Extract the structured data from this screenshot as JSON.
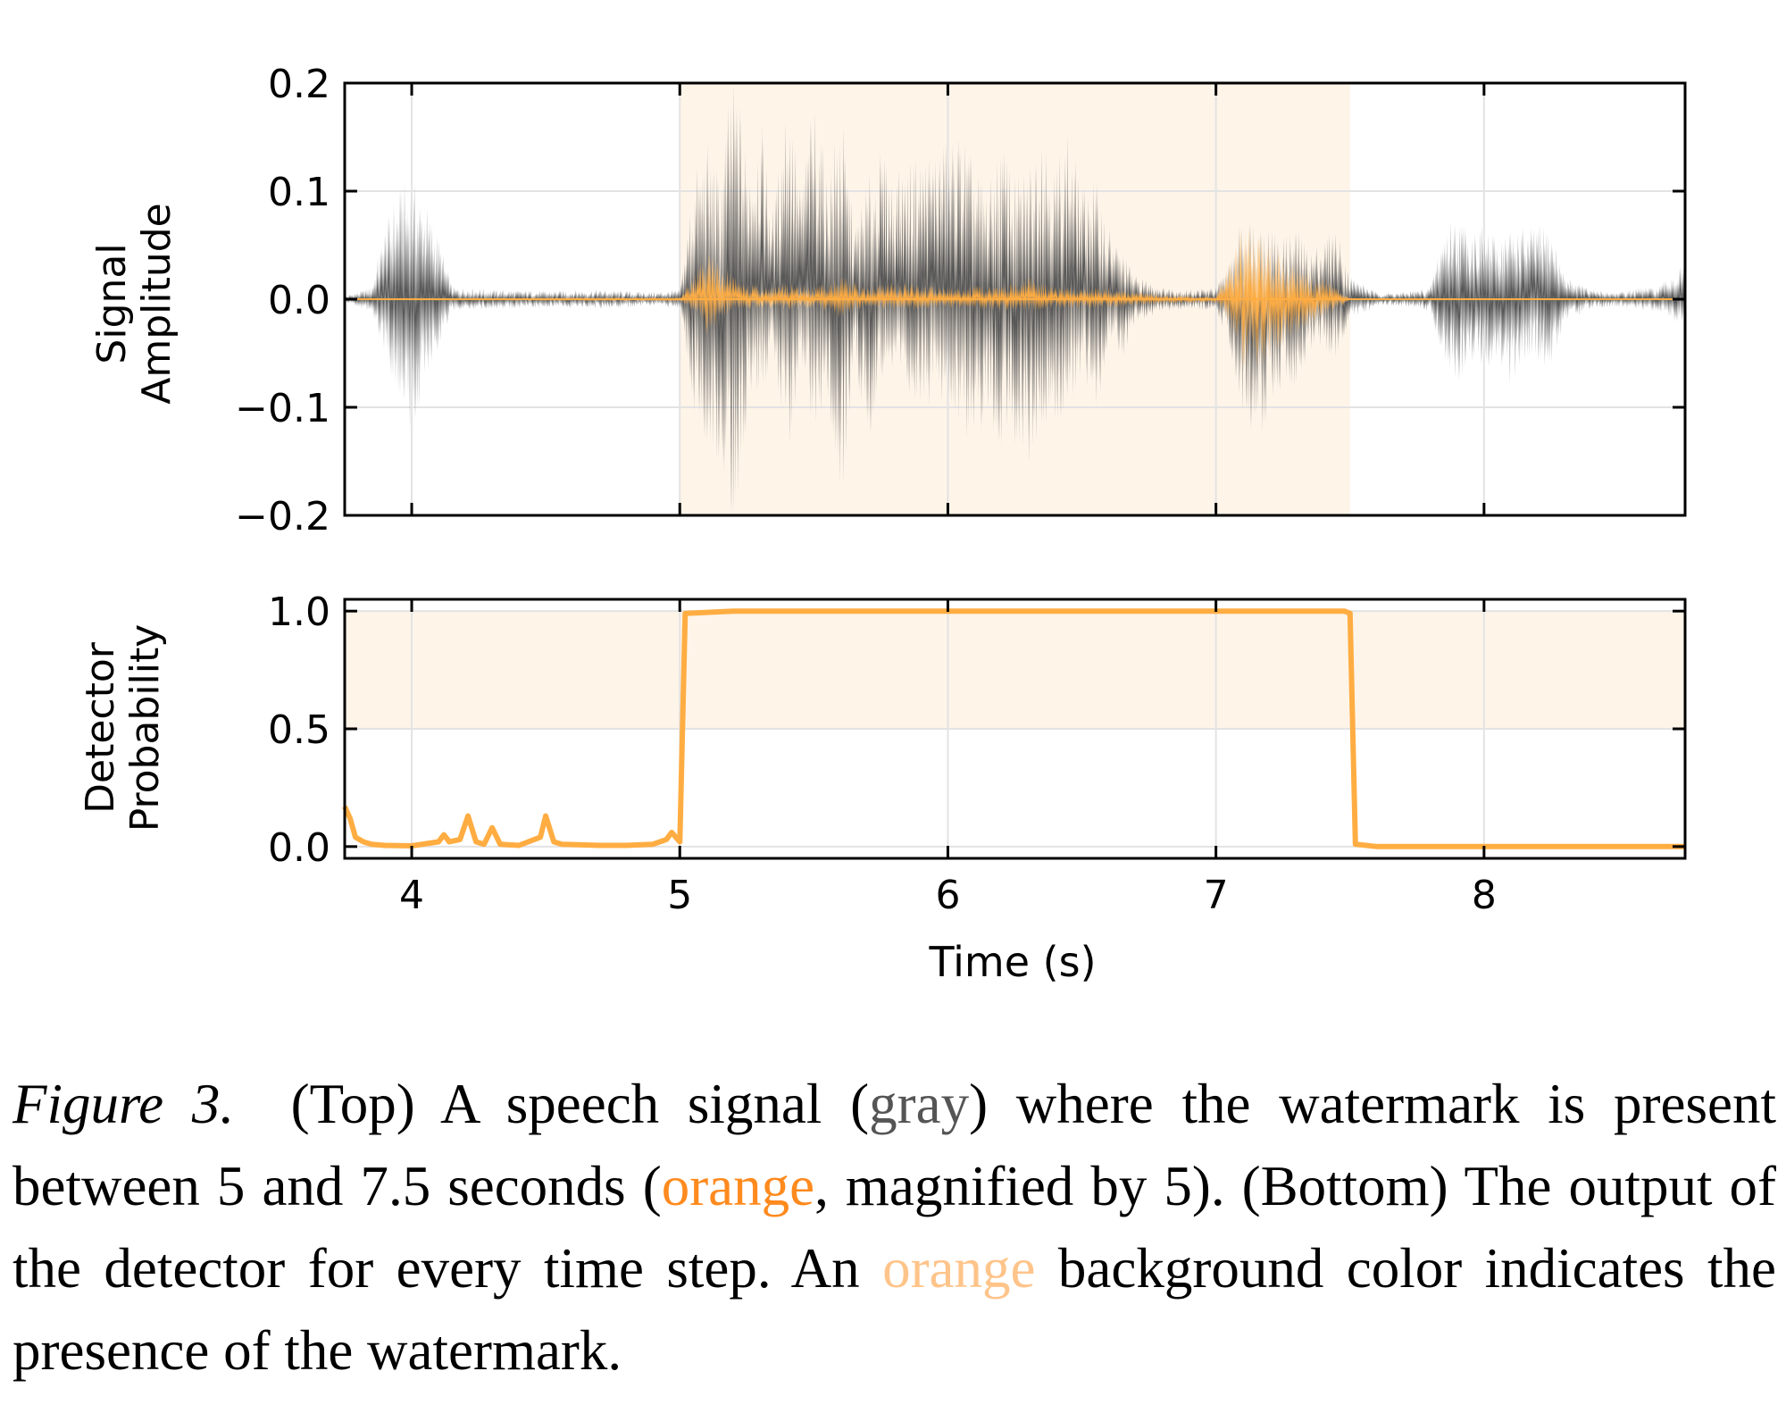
{
  "chart_data": [
    {
      "type": "line",
      "panel": "top",
      "ylabel_line1": "Signal",
      "ylabel_line2": "Amplitude",
      "xlabel": "",
      "xlim": [
        3.75,
        8.75
      ],
      "ylim": [
        -0.2,
        0.2
      ],
      "xticks": [
        4,
        5,
        6,
        7,
        8
      ],
      "xtick_labels": [
        "",
        "",
        "",
        "",
        ""
      ],
      "yticks": [
        0.2,
        0.1,
        0.0,
        -0.1,
        -0.2
      ],
      "ytick_labels": [
        "0.2",
        "0.1",
        "0.0",
        "−0.1",
        "−0.2"
      ],
      "grid": true,
      "shaded_region_x": [
        5.0,
        7.5
      ],
      "series": [
        {
          "color": "#555555",
          "envelope": [
            [
              3.75,
              0.003,
              -0.003
            ],
            [
              3.85,
              0.01,
              -0.01
            ],
            [
              3.9,
              0.06,
              -0.05
            ],
            [
              3.95,
              0.09,
              -0.08
            ],
            [
              4.0,
              0.1,
              -0.12
            ],
            [
              4.05,
              0.08,
              -0.07
            ],
            [
              4.1,
              0.05,
              -0.04
            ],
            [
              4.15,
              0.01,
              -0.01
            ],
            [
              4.3,
              0.008,
              -0.008
            ],
            [
              4.5,
              0.007,
              -0.007
            ],
            [
              4.7,
              0.008,
              -0.008
            ],
            [
              4.9,
              0.006,
              -0.006
            ],
            [
              5.0,
              0.008,
              -0.008
            ],
            [
              5.05,
              0.1,
              -0.09
            ],
            [
              5.1,
              0.13,
              -0.12
            ],
            [
              5.15,
              0.1,
              -0.14
            ],
            [
              5.2,
              0.2,
              -0.2
            ],
            [
              5.25,
              0.12,
              -0.1
            ],
            [
              5.3,
              0.15,
              -0.08
            ],
            [
              5.35,
              0.07,
              -0.05
            ],
            [
              5.4,
              0.18,
              -0.14
            ],
            [
              5.45,
              0.09,
              -0.06
            ],
            [
              5.5,
              0.17,
              -0.11
            ],
            [
              5.55,
              0.1,
              -0.08
            ],
            [
              5.6,
              0.16,
              -0.18
            ],
            [
              5.65,
              0.06,
              -0.05
            ],
            [
              5.7,
              0.1,
              -0.12
            ],
            [
              5.75,
              0.12,
              -0.07
            ],
            [
              5.8,
              0.1,
              -0.06
            ],
            [
              5.9,
              0.12,
              -0.09
            ],
            [
              6.0,
              0.13,
              -0.09
            ],
            [
              6.05,
              0.14,
              -0.11
            ],
            [
              6.1,
              0.11,
              -0.12
            ],
            [
              6.15,
              0.09,
              -0.1
            ],
            [
              6.2,
              0.13,
              -0.13
            ],
            [
              6.25,
              0.1,
              -0.12
            ],
            [
              6.3,
              0.11,
              -0.14
            ],
            [
              6.35,
              0.15,
              -0.12
            ],
            [
              6.4,
              0.11,
              -0.1
            ],
            [
              6.45,
              0.14,
              -0.09
            ],
            [
              6.5,
              0.09,
              -0.06
            ],
            [
              6.55,
              0.1,
              -0.1
            ],
            [
              6.6,
              0.06,
              -0.04
            ],
            [
              6.65,
              0.04,
              -0.05
            ],
            [
              6.7,
              0.02,
              -0.02
            ],
            [
              6.8,
              0.01,
              -0.01
            ],
            [
              6.9,
              0.008,
              -0.008
            ],
            [
              7.0,
              0.01,
              -0.01
            ],
            [
              7.05,
              0.03,
              -0.04
            ],
            [
              7.1,
              0.07,
              -0.09
            ],
            [
              7.15,
              0.07,
              -0.12
            ],
            [
              7.2,
              0.06,
              -0.1
            ],
            [
              7.25,
              0.05,
              -0.07
            ],
            [
              7.3,
              0.06,
              -0.08
            ],
            [
              7.35,
              0.04,
              -0.04
            ],
            [
              7.4,
              0.05,
              -0.04
            ],
            [
              7.45,
              0.06,
              -0.05
            ],
            [
              7.5,
              0.02,
              -0.02
            ],
            [
              7.6,
              0.006,
              -0.006
            ],
            [
              7.7,
              0.006,
              -0.006
            ],
            [
              7.8,
              0.01,
              -0.01
            ],
            [
              7.85,
              0.06,
              -0.05
            ],
            [
              7.9,
              0.07,
              -0.07
            ],
            [
              7.95,
              0.06,
              -0.05
            ],
            [
              8.0,
              0.06,
              -0.06
            ],
            [
              8.05,
              0.05,
              -0.05
            ],
            [
              8.1,
              0.06,
              -0.07
            ],
            [
              8.15,
              0.06,
              -0.05
            ],
            [
              8.2,
              0.06,
              -0.05
            ],
            [
              8.25,
              0.06,
              -0.06
            ],
            [
              8.3,
              0.02,
              -0.02
            ],
            [
              8.4,
              0.008,
              -0.008
            ],
            [
              8.5,
              0.006,
              -0.006
            ],
            [
              8.6,
              0.01,
              -0.01
            ],
            [
              8.65,
              0.01,
              -0.01
            ],
            [
              8.7,
              0.02,
              -0.015
            ],
            [
              8.75,
              0.03,
              -0.03
            ]
          ]
        },
        {
          "color": "#ffad42",
          "envelope": [
            [
              3.75,
              0.001,
              -0.001
            ],
            [
              5.0,
              0.002,
              -0.002
            ],
            [
              5.05,
              0.02,
              -0.01
            ],
            [
              5.1,
              0.04,
              -0.03
            ],
            [
              5.15,
              0.03,
              -0.02
            ],
            [
              5.2,
              0.02,
              -0.01
            ],
            [
              5.3,
              0.01,
              -0.008
            ],
            [
              5.4,
              0.015,
              -0.01
            ],
            [
              5.5,
              0.01,
              -0.008
            ],
            [
              5.6,
              0.02,
              -0.015
            ],
            [
              5.7,
              0.01,
              -0.008
            ],
            [
              5.8,
              0.015,
              -0.01
            ],
            [
              6.0,
              0.01,
              -0.008
            ],
            [
              6.2,
              0.012,
              -0.01
            ],
            [
              6.3,
              0.02,
              -0.01
            ],
            [
              6.4,
              0.01,
              -0.008
            ],
            [
              6.6,
              0.01,
              -0.008
            ],
            [
              6.8,
              0.004,
              -0.004
            ],
            [
              7.0,
              0.003,
              -0.003
            ],
            [
              7.05,
              0.03,
              -0.02
            ],
            [
              7.1,
              0.06,
              -0.06
            ],
            [
              7.15,
              0.06,
              -0.06
            ],
            [
              7.2,
              0.05,
              -0.05
            ],
            [
              7.25,
              0.04,
              -0.04
            ],
            [
              7.3,
              0.03,
              -0.03
            ],
            [
              7.4,
              0.02,
              -0.015
            ],
            [
              7.45,
              0.01,
              -0.01
            ],
            [
              7.5,
              0.001,
              -0.001
            ],
            [
              8.75,
              0.001,
              -0.001
            ]
          ]
        }
      ]
    },
    {
      "type": "line",
      "panel": "bottom",
      "ylabel_line1": "Detector",
      "ylabel_line2": "Probability",
      "xlabel": "Time (s)",
      "xlim": [
        3.75,
        8.75
      ],
      "ylim": [
        -0.05,
        1.05
      ],
      "xticks": [
        4,
        5,
        6,
        7,
        8
      ],
      "xtick_labels": [
        "4",
        "5",
        "6",
        "7",
        "8"
      ],
      "yticks": [
        1.0,
        0.5,
        0.0
      ],
      "ytick_labels": [
        "1.0",
        "0.5",
        "0.0"
      ],
      "grid": true,
      "shaded_region_y": [
        0.5,
        1.0
      ],
      "series": [
        {
          "color": "#ffad42",
          "x": [
            3.75,
            3.77,
            3.79,
            3.82,
            3.85,
            3.9,
            4.0,
            4.1,
            4.12,
            4.14,
            4.18,
            4.21,
            4.24,
            4.27,
            4.3,
            4.33,
            4.4,
            4.48,
            4.5,
            4.53,
            4.56,
            4.7,
            4.8,
            4.9,
            4.95,
            4.97,
            5.0,
            5.02,
            5.2,
            6.0,
            7.0,
            7.48,
            7.5,
            7.52,
            7.6,
            8.0,
            8.75
          ],
          "y": [
            0.17,
            0.12,
            0.04,
            0.02,
            0.01,
            0.005,
            0.003,
            0.02,
            0.05,
            0.02,
            0.03,
            0.13,
            0.02,
            0.01,
            0.08,
            0.01,
            0.005,
            0.04,
            0.13,
            0.02,
            0.01,
            0.005,
            0.005,
            0.01,
            0.03,
            0.06,
            0.02,
            0.99,
            1.0,
            1.0,
            1.0,
            1.0,
            0.99,
            0.01,
            0.0,
            0.0,
            0.0
          ]
        }
      ]
    }
  ],
  "caption": {
    "label": "Figure 3.",
    "part1": "(Top) A speech signal (",
    "gray_word": "gray",
    "part2": ") where the watermark is present between 5 and 7.5 seconds (",
    "orange_word": "orange",
    "part3": ", magnified by 5). (Bottom) The output of the detector for every time step. An ",
    "orange_word_2": "orange",
    "part4": " background color indicates the presence of the watermark."
  }
}
